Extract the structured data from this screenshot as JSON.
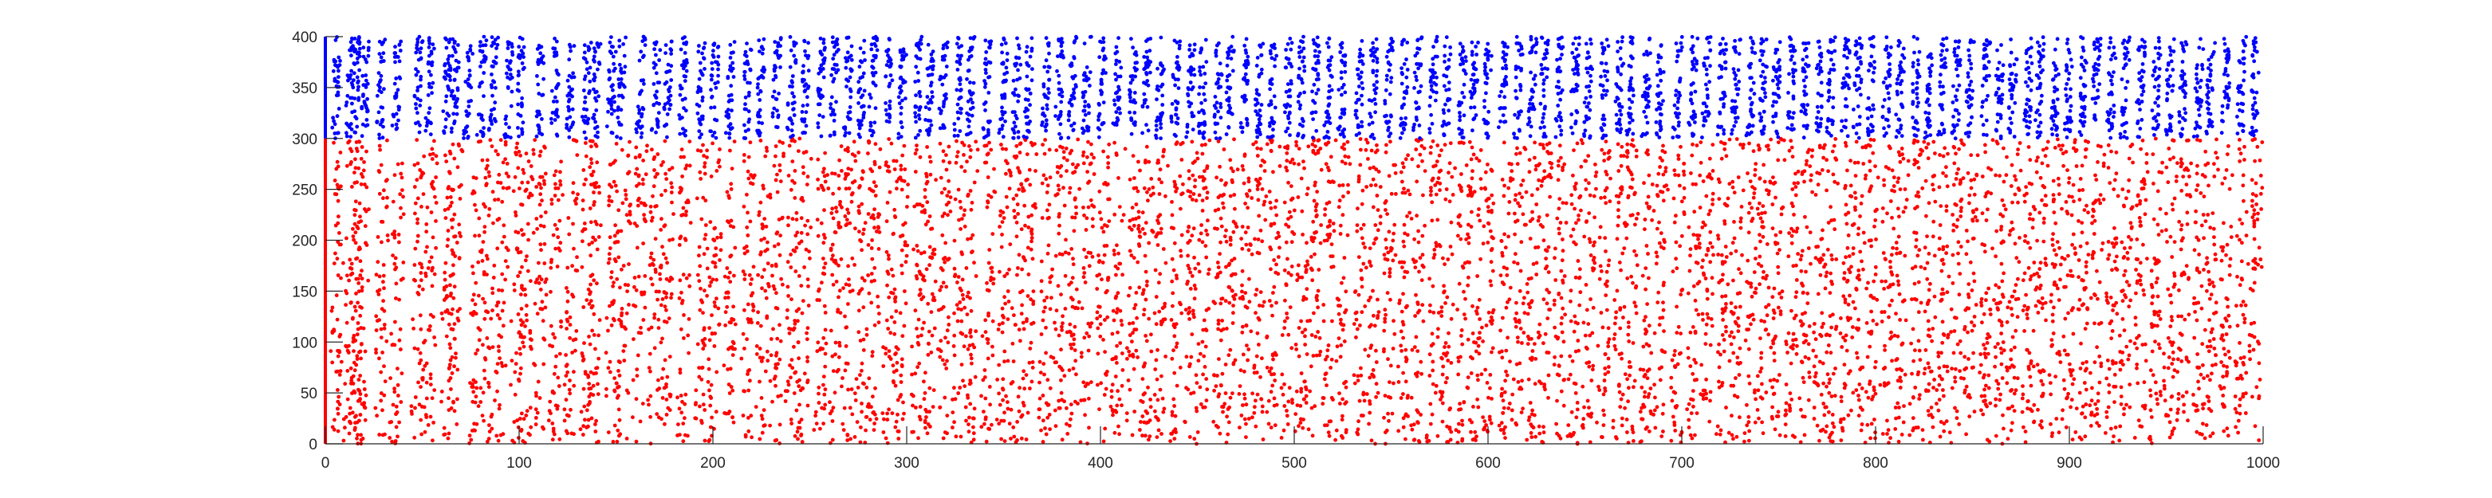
{
  "chart_data": {
    "type": "scatter",
    "title": "",
    "xlabel": "",
    "ylabel": "",
    "xlim": [
      0,
      1000
    ],
    "ylim": [
      0,
      400
    ],
    "x_ticks": [
      0,
      100,
      200,
      300,
      400,
      500,
      600,
      700,
      800,
      900,
      1000
    ],
    "y_ticks": [
      0,
      50,
      100,
      150,
      200,
      250,
      300,
      350,
      400
    ],
    "x_tick_labels": [
      "0",
      "100",
      "200",
      "300",
      "400",
      "500",
      "600",
      "700",
      "800",
      "900",
      "1000"
    ],
    "y_tick_labels": [
      "0",
      "50",
      "100",
      "150",
      "200",
      "250",
      "300",
      "350",
      "400"
    ],
    "grid": false,
    "legend": "none",
    "series": [
      {
        "color": "#ff0000",
        "y_range": [
          0,
          300
        ],
        "event_times": [
          5,
          12,
          15,
          18,
          28,
          36,
          47,
          53,
          62,
          66,
          77,
          83,
          90,
          98,
          103,
          110,
          118,
          126,
          134,
          138,
          147,
          153,
          161,
          169,
          175,
          184,
          193,
          200,
          208,
          217,
          225,
          232,
          240,
          246,
          255,
          262,
          269,
          276,
          282,
          290,
          296,
          305,
          311,
          318,
          326,
          332,
          341,
          349,
          356,
          362,
          371,
          378,
          385,
          392,
          400,
          408,
          416,
          423,
          430,
          438,
          446,
          452,
          460,
          466,
          474,
          481,
          488,
          496,
          503,
          510,
          517,
          524,
          533,
          540,
          548,
          556,
          563,
          571,
          578,
          586,
          592,
          599,
          608,
          615,
          622,
          628,
          636,
          644,
          651,
          659,
          667,
          673,
          681,
          688,
          697,
          705,
          712,
          720,
          727,
          735,
          741,
          748,
          756,
          763,
          770,
          776,
          784,
          790,
          797,
          805,
          812,
          820,
          827,
          834,
          841,
          848,
          856,
          863,
          870,
          878,
          884,
          892,
          899,
          906,
          913,
          921,
          928,
          936,
          944,
          951,
          958,
          966,
          972,
          980,
          988,
          995
        ]
      },
      {
        "color": "#0000ff",
        "y_range": [
          300,
          400
        ],
        "event_times": [
          5,
          12,
          15,
          20,
          28,
          36,
          47,
          53,
          62,
          66,
          73,
          80,
          86,
          94,
          100,
          110,
          118,
          126,
          134,
          139,
          147,
          152,
          162,
          170,
          176,
          184,
          193,
          200,
          208,
          217,
          224,
          232,
          240,
          247,
          255,
          262,
          269,
          276,
          282,
          290,
          297,
          305,
          311,
          318,
          326,
          332,
          341,
          349,
          356,
          362,
          371,
          378,
          385,
          392,
          400,
          408,
          416,
          423,
          430,
          438,
          446,
          452,
          460,
          466,
          474,
          481,
          488,
          496,
          503,
          510,
          517,
          524,
          533,
          540,
          548,
          556,
          563,
          571,
          578,
          586,
          592,
          599,
          607,
          615,
          622,
          628,
          636,
          644,
          651,
          659,
          667,
          673,
          681,
          688,
          697,
          705,
          712,
          720,
          727,
          735,
          741,
          748,
          756,
          763,
          770,
          776,
          784,
          790,
          797,
          805,
          812,
          820,
          827,
          834,
          841,
          848,
          856,
          863,
          870,
          878,
          884,
          892,
          899,
          906,
          913,
          921,
          928,
          936,
          944,
          951,
          958,
          966,
          972,
          980,
          988,
          995
        ]
      }
    ]
  }
}
